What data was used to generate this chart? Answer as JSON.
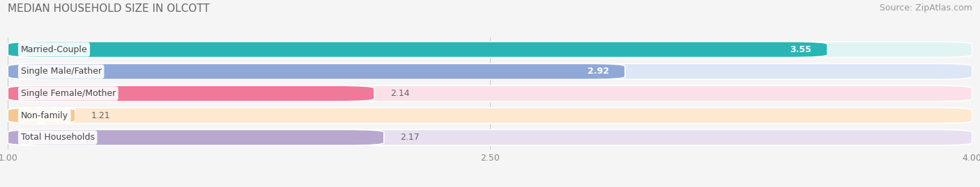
{
  "title": "MEDIAN HOUSEHOLD SIZE IN OLCOTT",
  "source": "Source: ZipAtlas.com",
  "categories": [
    "Married-Couple",
    "Single Male/Father",
    "Single Female/Mother",
    "Non-family",
    "Total Households"
  ],
  "values": [
    3.55,
    2.92,
    2.14,
    1.21,
    2.17
  ],
  "bar_colors": [
    "#2ab5b5",
    "#8fa8d8",
    "#f07898",
    "#f5c890",
    "#b8a8d0"
  ],
  "bar_bg_colors": [
    "#e0f4f4",
    "#dce6f5",
    "#fce0e8",
    "#fde8d0",
    "#e8e0f0"
  ],
  "value_inside": [
    true,
    true,
    false,
    false,
    false
  ],
  "xlim": [
    1.0,
    4.0
  ],
  "xticks": [
    1.0,
    2.5,
    4.0
  ],
  "title_fontsize": 11,
  "source_fontsize": 9,
  "label_fontsize": 9,
  "value_fontsize": 9,
  "background_color": "#f5f5f5"
}
